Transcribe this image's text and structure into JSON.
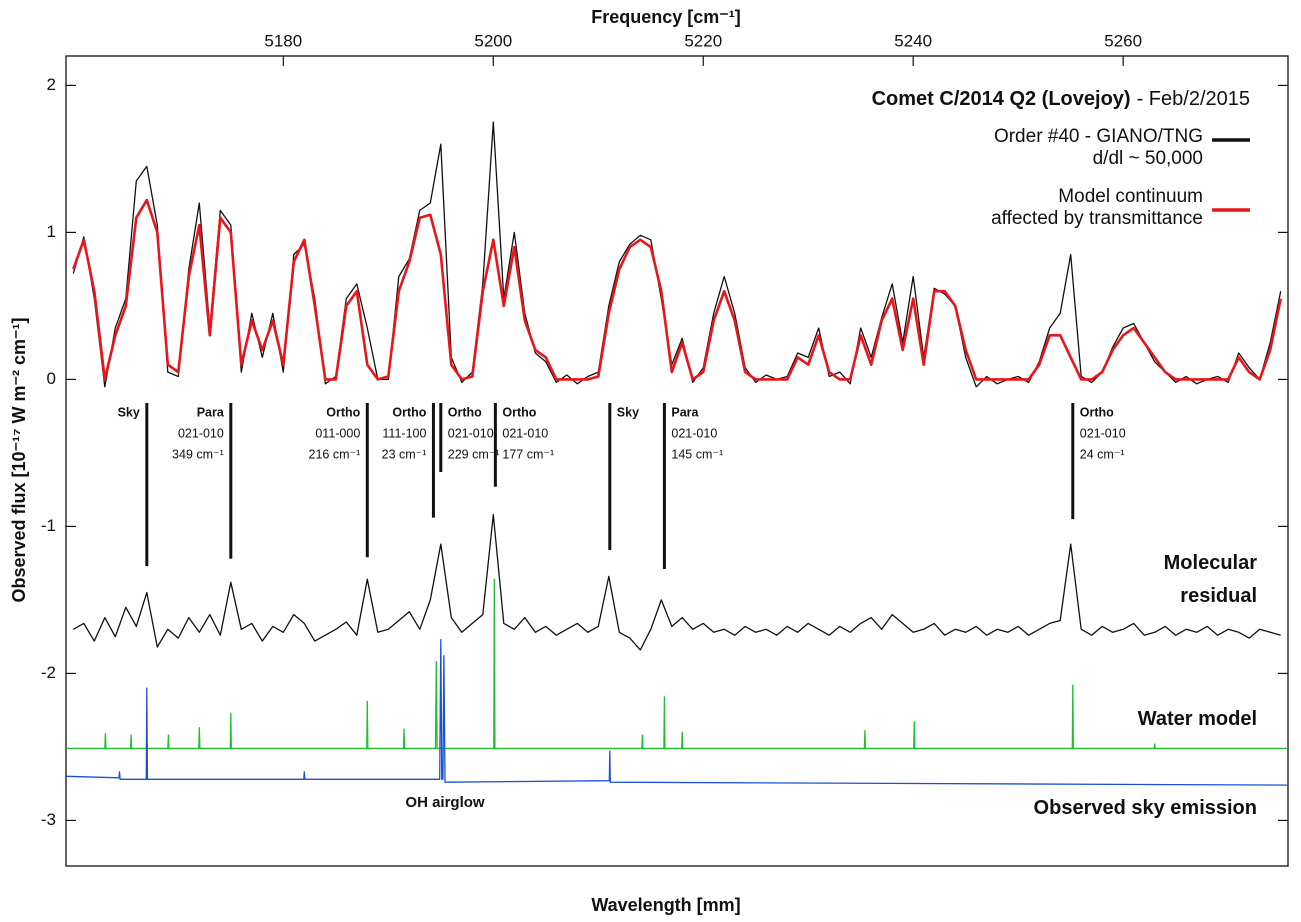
{
  "chart_data": {
    "type": "line",
    "title": "Comet C/2014 Q2 (Lovejoy)",
    "subtitle": "- Feb/2/2015",
    "x_label": "Frequency [cm⁻¹]",
    "x2_label": "Wavelength [mm]",
    "y_label": "Observed flux [10⁻¹⁷ W m⁻² cm⁻¹]",
    "xlim": [
      5159.3,
      5275.7
    ],
    "xticks": [
      5180,
      5200,
      5220,
      5240,
      5260
    ],
    "x2ticks": [
      1.93,
      1.92,
      1.91,
      {
        "value": 1.9,
        "label": "1.90"
      }
    ],
    "ylim": [
      -3.31,
      2.2
    ],
    "yticks": [
      -3,
      -2,
      -1,
      0,
      1,
      2
    ],
    "annotation": "OH airglow",
    "x": [
      5160,
      5161,
      5162,
      5163,
      5164,
      5165,
      5166,
      5167,
      5168,
      5169,
      5170,
      5171,
      5172,
      5173,
      5174,
      5175,
      5176,
      5177,
      5178,
      5179,
      5180,
      5181,
      5182,
      5183,
      5184,
      5185,
      5186,
      5187,
      5188,
      5189,
      5190,
      5191,
      5192,
      5193,
      5194,
      5195,
      5196,
      5197,
      5198,
      5199,
      5200,
      5201,
      5202,
      5203,
      5204,
      5205,
      5206,
      5207,
      5208,
      5209,
      5210,
      5211,
      5212,
      5213,
      5214,
      5215,
      5216,
      5217,
      5218,
      5219,
      5220,
      5221,
      5222,
      5223,
      5224,
      5225,
      5226,
      5227,
      5228,
      5229,
      5230,
      5231,
      5232,
      5233,
      5234,
      5235,
      5236,
      5237,
      5238,
      5239,
      5240,
      5241,
      5242,
      5243,
      5244,
      5245,
      5246,
      5247,
      5248,
      5249,
      5250,
      5251,
      5252,
      5253,
      5254,
      5255,
      5256,
      5257,
      5258,
      5259,
      5260,
      5261,
      5262,
      5263,
      5264,
      5265,
      5266,
      5267,
      5268,
      5269,
      5270,
      5271,
      5272,
      5273,
      5274,
      5275
    ],
    "series": [
      {
        "name": "Order #40 - GIANO/TNG\nd/dl ~ 50,000",
        "color": "#111111",
        "values": [
          0.72,
          0.97,
          0.55,
          -0.05,
          0.35,
          0.55,
          1.35,
          1.45,
          1.05,
          0.05,
          0.02,
          0.75,
          1.2,
          0.35,
          1.15,
          1.05,
          0.05,
          0.45,
          0.15,
          0.45,
          0.05,
          0.85,
          0.92,
          0.55,
          -0.03,
          0.02,
          0.55,
          0.65,
          0.35,
          0.0,
          0.0,
          0.7,
          0.82,
          1.15,
          1.2,
          1.6,
          0.15,
          -0.02,
          0.05,
          0.65,
          1.75,
          0.55,
          1.0,
          0.45,
          0.18,
          0.12,
          -0.02,
          0.03,
          -0.03,
          0.02,
          0.05,
          0.5,
          0.8,
          0.92,
          0.98,
          0.95,
          0.55,
          0.1,
          0.28,
          -0.02,
          0.08,
          0.45,
          0.7,
          0.45,
          0.08,
          -0.02,
          0.03,
          0.0,
          0.02,
          0.18,
          0.15,
          0.35,
          0.02,
          0.05,
          -0.03,
          0.35,
          0.15,
          0.42,
          0.65,
          0.25,
          0.7,
          0.15,
          0.62,
          0.58,
          0.5,
          0.15,
          -0.05,
          0.02,
          -0.03,
          0.0,
          0.02,
          -0.02,
          0.12,
          0.35,
          0.45,
          0.85,
          0.02,
          -0.02,
          0.05,
          0.22,
          0.35,
          0.38,
          0.25,
          0.12,
          0.05,
          -0.02,
          0.02,
          -0.03,
          0.0,
          0.02,
          -0.02,
          0.18,
          0.08,
          0.0,
          0.25,
          0.6
        ]
      },
      {
        "name": "Model continuum\naffected by transmittance",
        "color": "#e8161b",
        "values": [
          0.75,
          0.95,
          0.6,
          0.0,
          0.3,
          0.5,
          1.1,
          1.22,
          1.0,
          0.1,
          0.05,
          0.7,
          1.05,
          0.3,
          1.1,
          1.0,
          0.1,
          0.4,
          0.2,
          0.4,
          0.1,
          0.8,
          0.95,
          0.5,
          0.0,
          0.0,
          0.5,
          0.6,
          0.1,
          0.0,
          0.02,
          0.6,
          0.8,
          1.1,
          1.12,
          0.85,
          0.1,
          0.0,
          0.02,
          0.6,
          0.95,
          0.5,
          0.9,
          0.4,
          0.2,
          0.15,
          0.0,
          0.0,
          0.0,
          0.0,
          0.02,
          0.45,
          0.75,
          0.9,
          0.95,
          0.9,
          0.6,
          0.05,
          0.25,
          0.0,
          0.05,
          0.4,
          0.6,
          0.4,
          0.05,
          0.0,
          0.0,
          0.0,
          0.0,
          0.15,
          0.1,
          0.3,
          0.05,
          0.0,
          0.0,
          0.3,
          0.1,
          0.4,
          0.55,
          0.2,
          0.55,
          0.1,
          0.6,
          0.6,
          0.5,
          0.2,
          0.0,
          0.0,
          0.0,
          0.0,
          0.0,
          0.0,
          0.1,
          0.3,
          0.3,
          0.15,
          0.0,
          0.0,
          0.05,
          0.2,
          0.3,
          0.35,
          0.25,
          0.15,
          0.05,
          0.0,
          0.0,
          0.0,
          0.0,
          0.0,
          0.0,
          0.15,
          0.05,
          0.0,
          0.2,
          0.55
        ]
      },
      {
        "name": "Molecular\nresidual",
        "color": "#111111",
        "values": [
          -1.7,
          -1.66,
          -1.78,
          -1.62,
          -1.75,
          -1.55,
          -1.68,
          -1.45,
          -1.82,
          -1.7,
          -1.76,
          -1.62,
          -1.72,
          -1.6,
          -1.74,
          -1.38,
          -1.7,
          -1.66,
          -1.78,
          -1.68,
          -1.72,
          -1.6,
          -1.66,
          -1.78,
          -1.74,
          -1.7,
          -1.65,
          -1.74,
          -1.36,
          -1.72,
          -1.7,
          -1.64,
          -1.58,
          -1.7,
          -1.5,
          -1.12,
          -1.62,
          -1.72,
          -1.66,
          -1.6,
          -0.92,
          -1.66,
          -1.7,
          -1.62,
          -1.72,
          -1.68,
          -1.74,
          -1.7,
          -1.66,
          -1.72,
          -1.68,
          -1.34,
          -1.72,
          -1.76,
          -1.84,
          -1.7,
          -1.5,
          -1.68,
          -1.62,
          -1.7,
          -1.66,
          -1.72,
          -1.7,
          -1.74,
          -1.68,
          -1.72,
          -1.7,
          -1.74,
          -1.68,
          -1.72,
          -1.66,
          -1.7,
          -1.74,
          -1.68,
          -1.72,
          -1.66,
          -1.62,
          -1.7,
          -1.6,
          -1.66,
          -1.72,
          -1.7,
          -1.66,
          -1.74,
          -1.7,
          -1.72,
          -1.68,
          -1.74,
          -1.7,
          -1.72,
          -1.68,
          -1.74,
          -1.7,
          -1.66,
          -1.64,
          -1.12,
          -1.7,
          -1.74,
          -1.68,
          -1.72,
          -1.7,
          -1.66,
          -1.74,
          -1.72,
          -1.68,
          -1.74,
          -1.7,
          -1.72,
          -1.68,
          -1.74,
          -1.7,
          -1.72,
          -1.76,
          -1.7,
          -1.72,
          -1.74
        ]
      },
      {
        "name": "Water model",
        "color": "#1fbf2a",
        "x": [
          5159.3,
          5163.0,
          5163.05,
          5163.1,
          5165.45,
          5165.5,
          5165.55,
          5166.95,
          5167.0,
          5167.05,
          5169.0,
          5169.05,
          5169.1,
          5171.95,
          5172.0,
          5172.05,
          5174.95,
          5175.0,
          5175.05,
          5187.95,
          5188.0,
          5188.05,
          5191.45,
          5191.5,
          5191.55,
          5194.5,
          5194.57,
          5194.65,
          5200.05,
          5200.1,
          5200.15,
          5214.15,
          5214.2,
          5214.25,
          5216.25,
          5216.3,
          5216.35,
          5217.95,
          5218.0,
          5218.05,
          5235.35,
          5235.4,
          5235.45,
          5240.05,
          5240.1,
          5240.15,
          5255.15,
          5255.2,
          5255.25,
          5262.95,
          5263.0,
          5263.05,
          5275.7
        ],
        "values": [
          -2.51,
          -2.51,
          -2.41,
          -2.51,
          -2.51,
          -2.42,
          -2.51,
          -2.51,
          -2.45,
          -2.51,
          -2.51,
          -2.42,
          -2.51,
          -2.51,
          -2.37,
          -2.51,
          -2.51,
          -2.27,
          -2.51,
          -2.51,
          -2.19,
          -2.51,
          -2.51,
          -2.38,
          -2.51,
          -2.51,
          -1.92,
          -2.51,
          -2.51,
          -1.36,
          -2.51,
          -2.51,
          -2.42,
          -2.51,
          -2.51,
          -2.16,
          -2.51,
          -2.51,
          -2.4,
          -2.51,
          -2.51,
          -2.39,
          -2.51,
          -2.51,
          -2.33,
          -2.51,
          -2.51,
          -2.08,
          -2.51,
          -2.51,
          -2.48,
          -2.51,
          -2.51
        ]
      },
      {
        "name": "Observed sky emission",
        "color": "#1a4fd6",
        "x": [
          5159.3,
          5164.35,
          5164.4,
          5164.45,
          5166.95,
          5167.0,
          5167.05,
          5181.95,
          5182.0,
          5182.05,
          5194.9,
          5195.0,
          5195.1,
          5195.2,
          5195.3,
          5195.4,
          5211.05,
          5211.1,
          5211.15,
          5275.7
        ],
        "values": [
          -2.7,
          -2.71,
          -2.67,
          -2.72,
          -2.72,
          -2.1,
          -2.72,
          -2.72,
          -2.67,
          -2.72,
          -2.72,
          -1.77,
          -2.72,
          -2.72,
          -1.88,
          -2.74,
          -2.73,
          -2.53,
          -2.74,
          -2.76
        ]
      }
    ],
    "markers": [
      {
        "x": 5167.0,
        "y_end": -1.27,
        "label": [
          "Sky"
        ]
      },
      {
        "x": 5175.0,
        "y_end": -1.22,
        "label": [
          "Para",
          "021-010",
          "349 cm⁻¹"
        ]
      },
      {
        "x": 5188.0,
        "y_end": -1.21,
        "label": [
          "Ortho",
          "011-000",
          "216 cm⁻¹"
        ]
      },
      {
        "x": 5194.3,
        "y_end": -0.94,
        "label": [
          "Ortho",
          "111-100",
          "23 cm⁻¹"
        ]
      },
      {
        "x": 5195.0,
        "y_end": -0.63,
        "label": [
          "Ortho",
          "021-010",
          "229 cm⁻¹"
        ]
      },
      {
        "x": 5200.2,
        "y_end": -0.73,
        "label": [
          "Ortho",
          "021-010",
          "177 cm⁻¹"
        ]
      },
      {
        "x": 5211.1,
        "y_end": -1.16,
        "label": [
          "Sky"
        ]
      },
      {
        "x": 5216.3,
        "y_end": -1.29,
        "label": [
          "Para",
          "021-010",
          "145 cm⁻¹"
        ]
      },
      {
        "x": 5255.2,
        "y_end": -0.95,
        "label": [
          "Ortho",
          "021-010",
          "24 cm⁻¹"
        ]
      }
    ]
  }
}
